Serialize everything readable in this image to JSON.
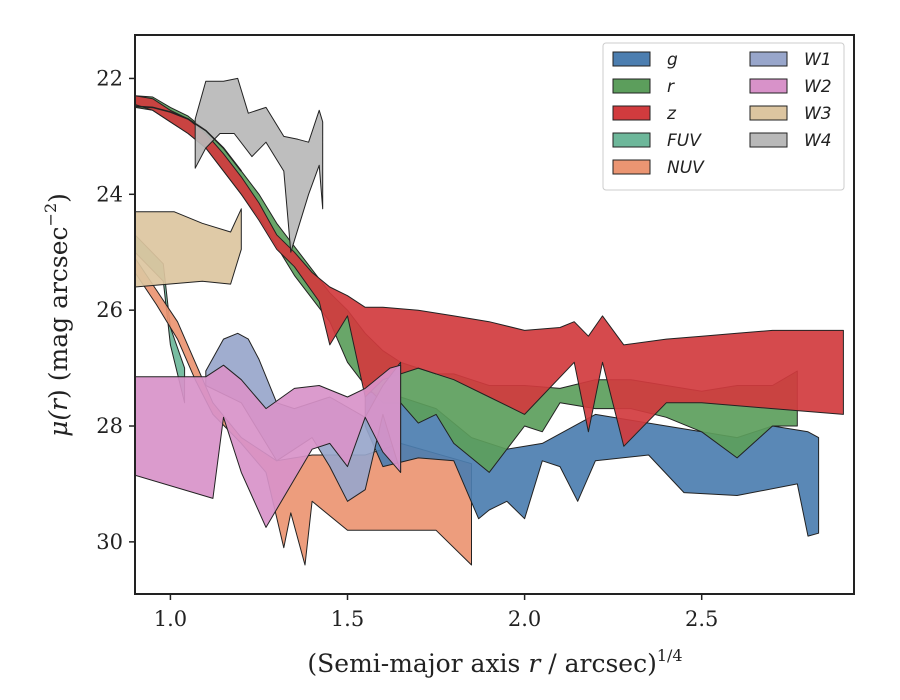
{
  "chart_data": {
    "type": "area",
    "xlabel_main": "(Semi-major axis ",
    "xlabel_var": "r",
    "xlabel_unit": " / arcsec)",
    "xlabel_sup": "1/4",
    "ylabel_main": "μ(",
    "ylabel_var": "r",
    "ylabel_unit": ") (mag arcsec",
    "ylabel_sup": "−2",
    "ylabel_close": ")",
    "xlim": [
      0.9,
      2.93
    ],
    "ylim": [
      30.9,
      21.25
    ],
    "y_inverted": true,
    "x_ticks": [
      {
        "v": 1.0,
        "label": "1.0"
      },
      {
        "v": 1.5,
        "label": "1.5"
      },
      {
        "v": 2.0,
        "label": "2.0"
      },
      {
        "v": 2.5,
        "label": "2.5"
      }
    ],
    "y_ticks": [
      {
        "v": 22,
        "label": "22"
      },
      {
        "v": 24,
        "label": "24"
      },
      {
        "v": 26,
        "label": "26"
      },
      {
        "v": 28,
        "label": "28"
      },
      {
        "v": 30,
        "label": "30"
      }
    ],
    "grid": false,
    "legend_position": "top-right",
    "series": [
      {
        "name": "FUV",
        "color": "#6db79a",
        "upper": [
          [
            0.9,
            24.7
          ],
          [
            0.98,
            25.2
          ],
          [
            1.0,
            26.3
          ],
          [
            1.04,
            27.0
          ]
        ],
        "lower": [
          [
            1.04,
            27.6
          ],
          [
            1.0,
            26.6
          ],
          [
            0.98,
            25.5
          ],
          [
            0.9,
            25.0
          ]
        ]
      },
      {
        "name": "NUV",
        "color": "#eb9572",
        "upper": [
          [
            0.9,
            25.1
          ],
          [
            0.96,
            25.65
          ],
          [
            1.02,
            26.2
          ],
          [
            1.07,
            26.9
          ],
          [
            1.12,
            27.6
          ],
          [
            1.2,
            28.2
          ],
          [
            1.3,
            28.6
          ],
          [
            1.4,
            28.5
          ],
          [
            1.55,
            28.5
          ],
          [
            1.65,
            28.3
          ],
          [
            1.85,
            28.65
          ]
        ],
        "lower": [
          [
            1.85,
            30.4
          ],
          [
            1.75,
            29.8
          ],
          [
            1.5,
            29.8
          ],
          [
            1.4,
            29.3
          ],
          [
            1.38,
            30.4
          ],
          [
            1.34,
            29.5
          ],
          [
            1.32,
            30.1
          ],
          [
            1.27,
            28.8
          ],
          [
            1.2,
            28.3
          ],
          [
            1.12,
            27.8
          ],
          [
            1.07,
            27.2
          ],
          [
            1.02,
            26.5
          ],
          [
            0.96,
            25.9
          ],
          [
            0.9,
            25.35
          ]
        ]
      },
      {
        "name": "W3",
        "color": "#dcc5a0",
        "upper": [
          [
            0.9,
            24.3
          ],
          [
            1.01,
            24.3
          ],
          [
            1.09,
            24.5
          ],
          [
            1.17,
            24.65
          ],
          [
            1.2,
            24.25
          ]
        ],
        "lower": [
          [
            1.2,
            24.95
          ],
          [
            1.17,
            25.55
          ],
          [
            1.09,
            25.5
          ],
          [
            0.9,
            25.6
          ]
        ]
      },
      {
        "name": "g",
        "color": "#4c7eb0",
        "upper": [
          [
            1.55,
            27.4
          ],
          [
            1.65,
            27.5
          ],
          [
            1.75,
            27.7
          ],
          [
            1.85,
            28.2
          ],
          [
            1.95,
            28.4
          ],
          [
            2.05,
            28.3
          ],
          [
            2.2,
            27.8
          ],
          [
            2.3,
            27.9
          ],
          [
            2.4,
            28.0
          ],
          [
            2.5,
            28.1
          ],
          [
            2.6,
            28.2
          ],
          [
            2.7,
            28.0
          ],
          [
            2.8,
            28.1
          ],
          [
            2.83,
            28.2
          ]
        ],
        "lower": [
          [
            2.83,
            29.85
          ],
          [
            2.8,
            29.9
          ],
          [
            2.77,
            29.0
          ],
          [
            2.6,
            29.2
          ],
          [
            2.45,
            29.15
          ],
          [
            2.35,
            28.5
          ],
          [
            2.2,
            28.6
          ],
          [
            2.15,
            29.3
          ],
          [
            2.1,
            28.7
          ],
          [
            2.05,
            28.6
          ],
          [
            2.0,
            29.6
          ],
          [
            1.95,
            29.3
          ],
          [
            1.9,
            29.45
          ],
          [
            1.87,
            29.6
          ],
          [
            1.8,
            28.6
          ],
          [
            1.7,
            28.55
          ],
          [
            1.6,
            28.7
          ],
          [
            1.55,
            28.0
          ]
        ]
      },
      {
        "name": "r",
        "color": "#5c9e5c",
        "upper": [
          [
            0.9,
            22.3
          ],
          [
            0.95,
            22.32
          ],
          [
            1.0,
            22.5
          ],
          [
            1.05,
            22.65
          ],
          [
            1.1,
            22.9
          ],
          [
            1.15,
            23.2
          ],
          [
            1.2,
            23.6
          ],
          [
            1.25,
            24.0
          ],
          [
            1.3,
            24.5
          ],
          [
            1.35,
            24.9
          ],
          [
            1.4,
            25.3
          ],
          [
            1.45,
            25.7
          ],
          [
            1.5,
            26.0
          ],
          [
            1.55,
            26.4
          ],
          [
            1.6,
            26.7
          ],
          [
            1.65,
            26.9
          ],
          [
            1.7,
            27.0
          ],
          [
            1.75,
            27.1
          ],
          [
            1.8,
            27.1
          ],
          [
            1.85,
            27.2
          ],
          [
            1.9,
            27.3
          ],
          [
            2.0,
            27.3
          ],
          [
            2.1,
            27.35
          ],
          [
            2.2,
            27.2
          ],
          [
            2.3,
            27.2
          ],
          [
            2.4,
            27.3
          ],
          [
            2.5,
            27.4
          ],
          [
            2.6,
            27.3
          ],
          [
            2.7,
            27.3
          ],
          [
            2.77,
            27.05
          ]
        ],
        "lower": [
          [
            2.77,
            28.0
          ],
          [
            2.7,
            28.0
          ],
          [
            2.6,
            28.55
          ],
          [
            2.5,
            28.1
          ],
          [
            2.4,
            27.85
          ],
          [
            2.3,
            27.7
          ],
          [
            2.2,
            27.7
          ],
          [
            2.1,
            27.6
          ],
          [
            2.05,
            28.1
          ],
          [
            2.0,
            28.0
          ],
          [
            1.9,
            28.8
          ],
          [
            1.8,
            28.3
          ],
          [
            1.75,
            27.8
          ],
          [
            1.7,
            27.95
          ],
          [
            1.65,
            27.6
          ],
          [
            1.6,
            27.6
          ],
          [
            1.55,
            27.3
          ],
          [
            1.5,
            26.9
          ],
          [
            1.45,
            26.2
          ],
          [
            1.4,
            25.8
          ],
          [
            1.35,
            25.4
          ],
          [
            1.3,
            24.9
          ],
          [
            1.25,
            24.4
          ],
          [
            1.2,
            24.0
          ],
          [
            1.15,
            23.6
          ],
          [
            1.1,
            23.2
          ],
          [
            1.05,
            22.95
          ],
          [
            1.0,
            22.75
          ],
          [
            0.95,
            22.55
          ],
          [
            0.9,
            22.5
          ]
        ]
      },
      {
        "name": "z",
        "color": "#d13b3e",
        "upper": [
          [
            0.9,
            22.3
          ],
          [
            0.95,
            22.35
          ],
          [
            1.0,
            22.55
          ],
          [
            1.05,
            22.7
          ],
          [
            1.1,
            22.95
          ],
          [
            1.15,
            23.3
          ],
          [
            1.2,
            23.7
          ],
          [
            1.25,
            24.15
          ],
          [
            1.3,
            24.7
          ],
          [
            1.35,
            25.0
          ],
          [
            1.4,
            25.35
          ],
          [
            1.45,
            25.6
          ],
          [
            1.5,
            25.75
          ],
          [
            1.55,
            25.95
          ],
          [
            1.6,
            25.95
          ],
          [
            1.7,
            26.0
          ],
          [
            1.8,
            26.1
          ],
          [
            1.9,
            26.2
          ],
          [
            2.0,
            26.35
          ],
          [
            2.1,
            26.3
          ],
          [
            2.14,
            26.2
          ],
          [
            2.18,
            26.45
          ],
          [
            2.22,
            26.1
          ],
          [
            2.28,
            26.6
          ],
          [
            2.4,
            26.5
          ],
          [
            2.5,
            26.45
          ],
          [
            2.6,
            26.4
          ],
          [
            2.7,
            26.35
          ],
          [
            2.9,
            26.35
          ]
        ],
        "lower": [
          [
            2.9,
            27.8
          ],
          [
            2.7,
            27.7
          ],
          [
            2.5,
            27.6
          ],
          [
            2.4,
            27.6
          ],
          [
            2.28,
            28.35
          ],
          [
            2.22,
            26.9
          ],
          [
            2.18,
            28.1
          ],
          [
            2.14,
            26.9
          ],
          [
            2.0,
            27.8
          ],
          [
            1.9,
            27.5
          ],
          [
            1.8,
            27.2
          ],
          [
            1.7,
            27.0
          ],
          [
            1.6,
            27.2
          ],
          [
            1.55,
            27.5
          ],
          [
            1.5,
            26.1
          ],
          [
            1.45,
            26.6
          ],
          [
            1.42,
            25.85
          ],
          [
            1.35,
            25.25
          ],
          [
            1.3,
            24.95
          ],
          [
            1.25,
            24.45
          ],
          [
            1.2,
            24.0
          ],
          [
            1.15,
            23.6
          ],
          [
            1.1,
            23.2
          ],
          [
            1.05,
            22.95
          ],
          [
            1.0,
            22.75
          ],
          [
            0.95,
            22.55
          ],
          [
            0.9,
            22.45
          ]
        ]
      },
      {
        "name": "W1",
        "color": "#98a6cb",
        "upper": [
          [
            1.1,
            27.05
          ],
          [
            1.15,
            26.5
          ],
          [
            1.19,
            26.4
          ],
          [
            1.22,
            26.5
          ],
          [
            1.25,
            26.85
          ],
          [
            1.3,
            27.6
          ],
          [
            1.35,
            27.7
          ],
          [
            1.45,
            27.5
          ],
          [
            1.55,
            27.85
          ],
          [
            1.6,
            27.3
          ],
          [
            1.65,
            26.9
          ]
        ],
        "lower": [
          [
            1.65,
            28.8
          ],
          [
            1.6,
            27.8
          ],
          [
            1.55,
            29.1
          ],
          [
            1.5,
            29.3
          ],
          [
            1.45,
            28.7
          ],
          [
            1.4,
            28.2
          ],
          [
            1.35,
            28.4
          ],
          [
            1.3,
            28.6
          ],
          [
            1.25,
            28.1
          ],
          [
            1.2,
            27.6
          ],
          [
            1.1,
            27.3
          ]
        ]
      },
      {
        "name": "W2",
        "color": "#d892c9",
        "upper": [
          [
            0.9,
            27.15
          ],
          [
            1.0,
            27.15
          ],
          [
            1.1,
            27.15
          ],
          [
            1.15,
            26.95
          ],
          [
            1.2,
            27.2
          ],
          [
            1.27,
            27.7
          ],
          [
            1.35,
            27.35
          ],
          [
            1.42,
            27.3
          ],
          [
            1.5,
            27.5
          ],
          [
            1.55,
            27.35
          ],
          [
            1.62,
            27.0
          ],
          [
            1.65,
            26.95
          ]
        ],
        "lower": [
          [
            1.65,
            28.8
          ],
          [
            1.6,
            28.45
          ],
          [
            1.55,
            27.85
          ],
          [
            1.5,
            28.7
          ],
          [
            1.45,
            28.3
          ],
          [
            1.4,
            28.4
          ],
          [
            1.27,
            29.75
          ],
          [
            1.2,
            28.8
          ],
          [
            1.15,
            27.85
          ],
          [
            1.12,
            29.25
          ],
          [
            0.9,
            28.85
          ]
        ]
      },
      {
        "name": "W4",
        "color": "#b9b9b9",
        "upper": [
          [
            1.07,
            22.7
          ],
          [
            1.1,
            22.05
          ],
          [
            1.15,
            22.05
          ],
          [
            1.19,
            22.0
          ],
          [
            1.22,
            22.6
          ],
          [
            1.27,
            22.5
          ],
          [
            1.32,
            23.0
          ],
          [
            1.36,
            23.05
          ],
          [
            1.39,
            23.1
          ],
          [
            1.42,
            22.55
          ],
          [
            1.43,
            22.75
          ]
        ],
        "lower": [
          [
            1.43,
            24.25
          ],
          [
            1.42,
            23.5
          ],
          [
            1.39,
            24.0
          ],
          [
            1.34,
            25.0
          ],
          [
            1.32,
            23.6
          ],
          [
            1.27,
            23.1
          ],
          [
            1.23,
            23.35
          ],
          [
            1.18,
            22.95
          ],
          [
            1.14,
            22.95
          ],
          [
            1.1,
            23.2
          ],
          [
            1.07,
            23.55
          ]
        ]
      }
    ],
    "profile_lines": [
      {
        "color": "#222",
        "points": [
          [
            0.9,
            22.48
          ],
          [
            0.95,
            22.5
          ],
          [
            1.0,
            22.58
          ],
          [
            1.05,
            22.7
          ],
          [
            1.1,
            22.9
          ],
          [
            1.15,
            23.2
          ],
          [
            1.2,
            23.6
          ]
        ]
      }
    ],
    "legend": {
      "columns": [
        [
          "g",
          "r",
          "z",
          "FUV",
          "NUV"
        ],
        [
          "W1",
          "W2",
          "W3",
          "W4"
        ]
      ]
    }
  }
}
